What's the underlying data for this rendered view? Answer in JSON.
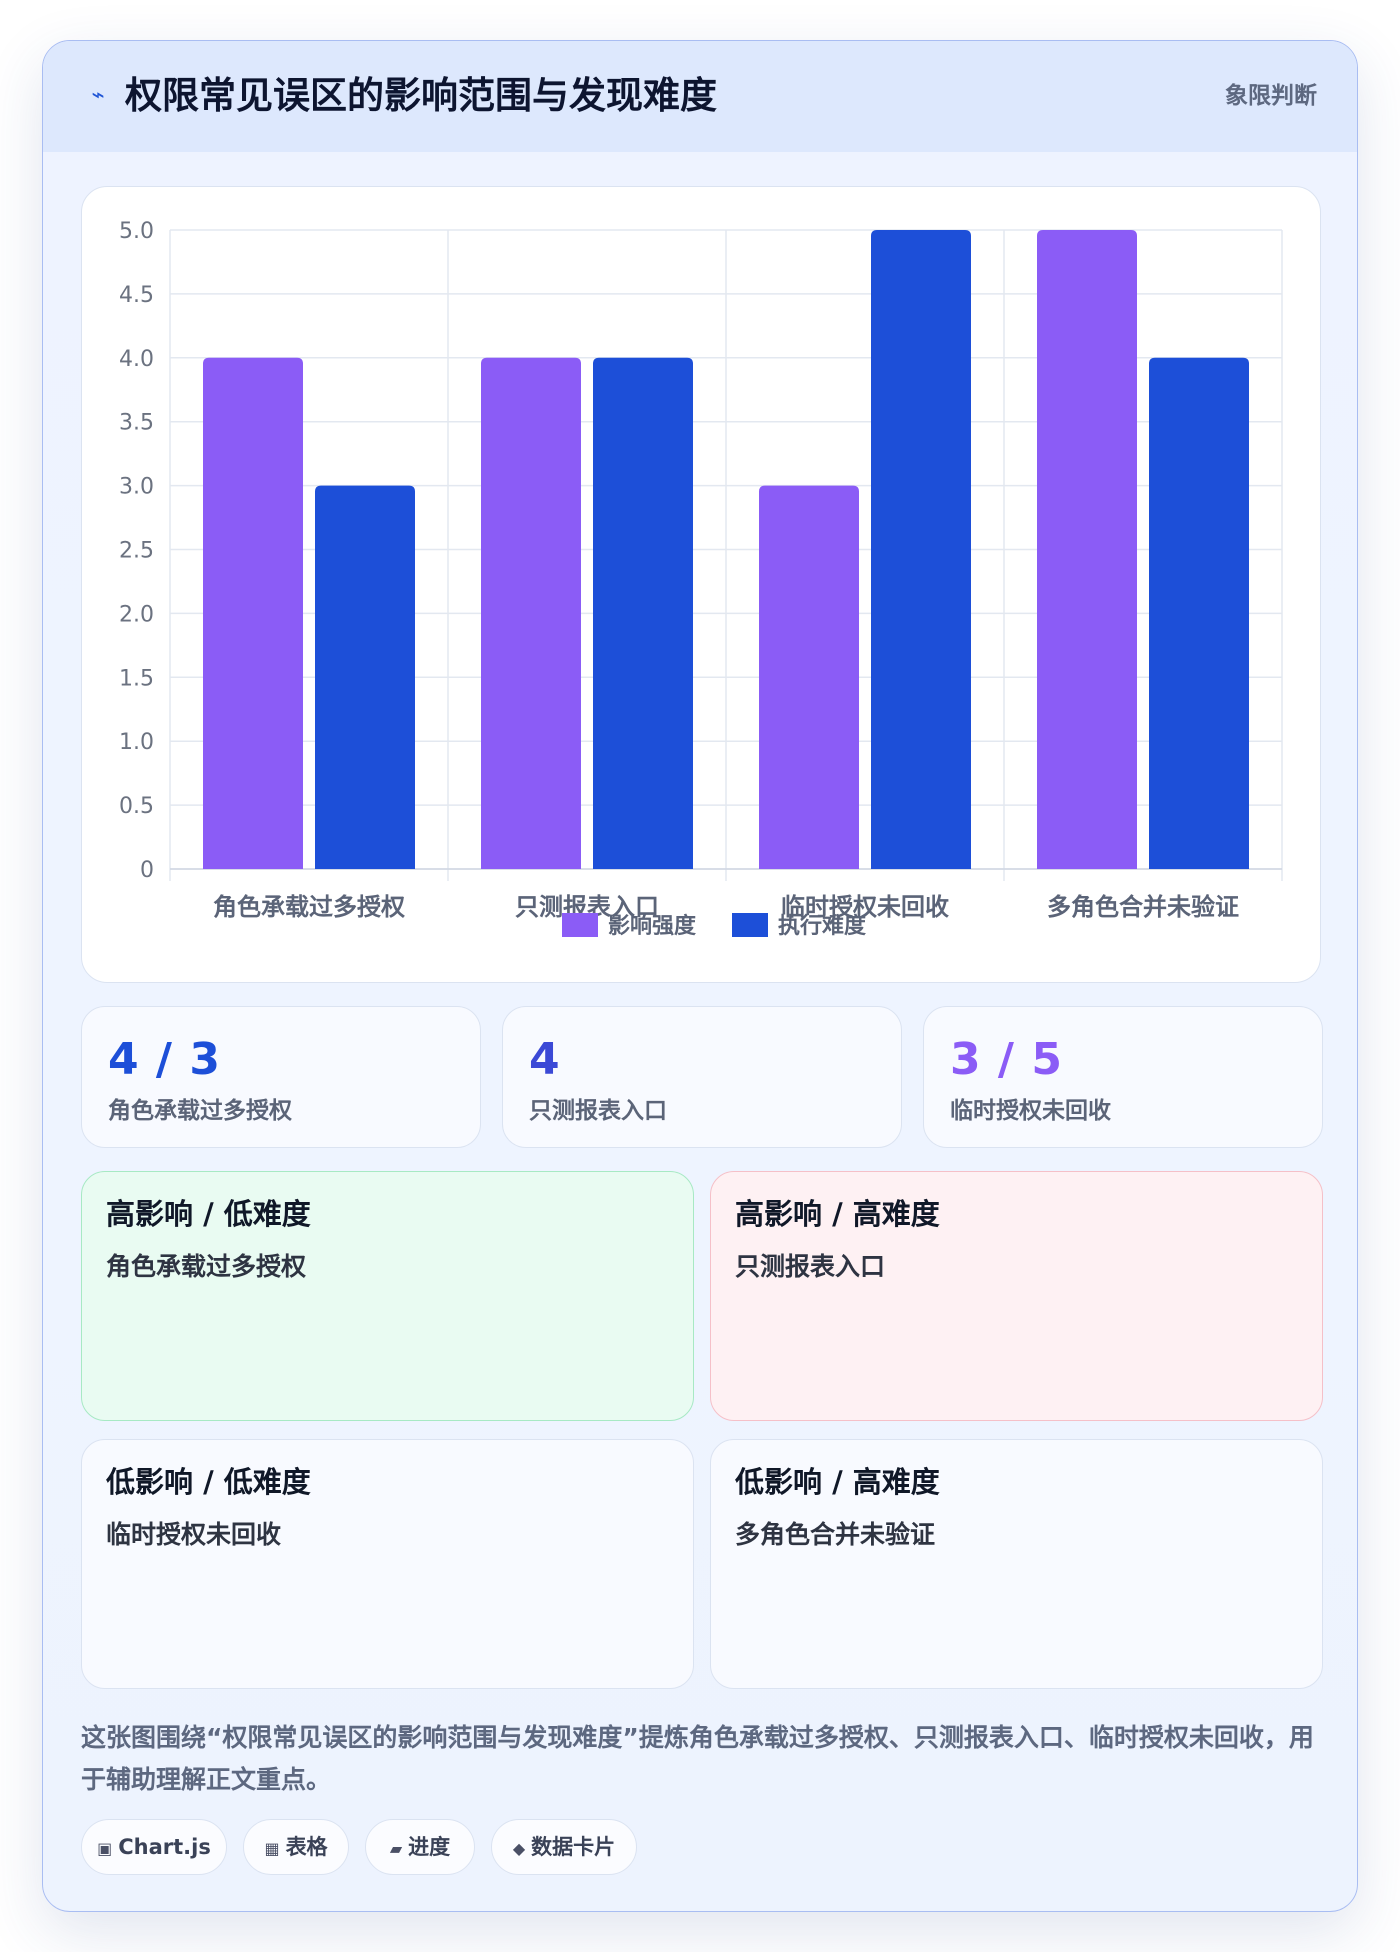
{
  "header": {
    "icon": "lightning-icon",
    "title": "权限常见误区的影响范围与发现难度",
    "tag": "象限判断"
  },
  "chart_data": {
    "type": "bar",
    "categories": [
      "角色承载过多授权",
      "只测报表入口",
      "临时授权未回收",
      "多角色合并未验证"
    ],
    "series": [
      {
        "name": "影响强度",
        "values": [
          4,
          4,
          3,
          5
        ],
        "color": "#8b5cf6"
      },
      {
        "name": "执行难度",
        "values": [
          3,
          4,
          5,
          4
        ],
        "color": "#1d4fd8"
      }
    ],
    "ylim": [
      0,
      5
    ],
    "yticks": [
      "0",
      "0.5",
      "1.0",
      "1.5",
      "2.0",
      "2.5",
      "3.0",
      "3.5",
      "4.0",
      "4.5",
      "5.0"
    ],
    "grid": true,
    "legend": "bottom"
  },
  "stats": [
    {
      "value": "4 / 3",
      "label": "角色承载过多授权",
      "color": "#1d4fd8"
    },
    {
      "value": "4",
      "label": "只测报表入口",
      "color": "#3b49d6"
    },
    {
      "value": "3 / 5",
      "label": "临时授权未回收",
      "color": "#8b5cf6"
    }
  ],
  "quadrants": [
    {
      "title": "高影响 / 低难度",
      "item": "角色承载过多授权",
      "bg": "#e9fbf2",
      "border": "#a7e9c4"
    },
    {
      "title": "高影响 / 高难度",
      "item": "只测报表入口",
      "bg": "#fef1f3",
      "border": "#f5c0c8"
    },
    {
      "title": "低影响 / 低难度",
      "item": "临时授权未回收",
      "bg": "#f8faff",
      "border": "#dbe3f1"
    },
    {
      "title": "低影响 / 高难度",
      "item": "多角色合并未验证",
      "bg": "#f8faff",
      "border": "#dbe3f1"
    }
  ],
  "description": "这张图围绕“权限常见误区的影响范围与发现难度”提炼角色承载过多授权、只测报表入口、临时授权未回收，用于辅助理解正文重点。",
  "pills": [
    {
      "icon": "▣",
      "label": "Chart.js"
    },
    {
      "icon": "▦",
      "label": "表格"
    },
    {
      "icon": "▰",
      "label": "进度"
    },
    {
      "icon": "◆",
      "label": "数据卡片"
    }
  ]
}
